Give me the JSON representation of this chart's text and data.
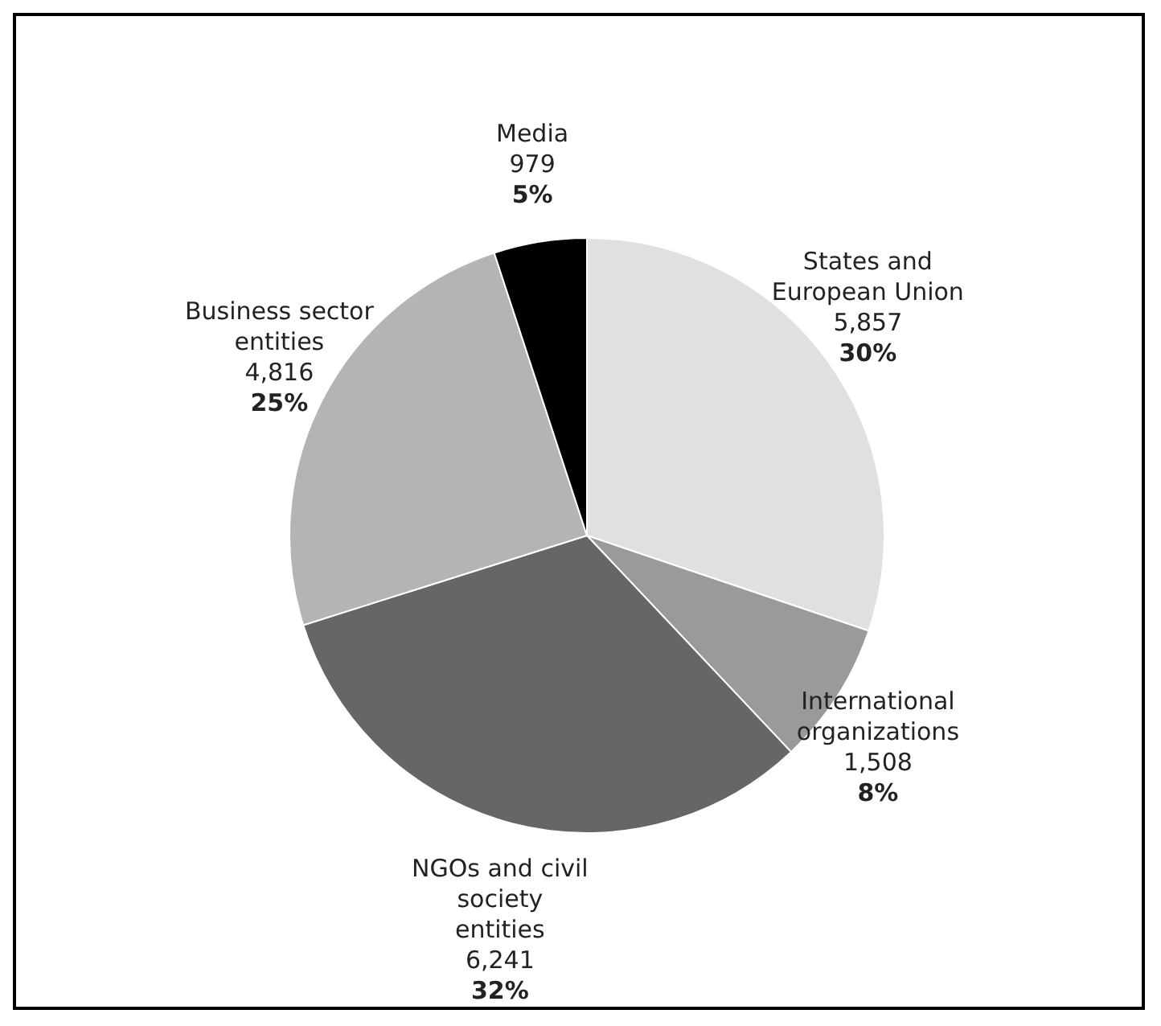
{
  "chart_data": {
    "type": "pie",
    "categories": [
      "States and European Union",
      "International organizations",
      "NGOs and civil society entities",
      "Business sector entities",
      "Media"
    ],
    "values": [
      5857,
      1508,
      6241,
      4816,
      979
    ],
    "colors": [
      "#e0e0e0",
      "#9a9a9a",
      "#666666",
      "#b4b4b4",
      "#000000"
    ],
    "annotations": [
      "30%",
      "8%",
      "32%",
      "25%",
      "5%"
    ],
    "value_labels": [
      "5,857",
      "1,508",
      "6,241",
      "4,816",
      "979"
    ],
    "legend": false
  }
}
